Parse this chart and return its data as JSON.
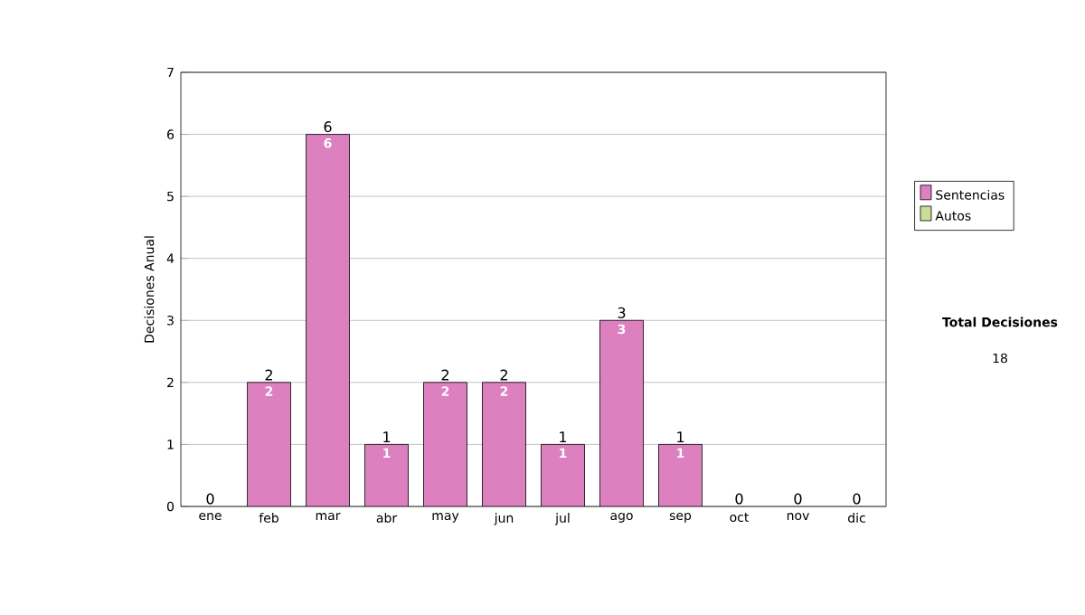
{
  "chart_data": {
    "type": "bar",
    "stacked": true,
    "ylabel": "Decisiones Anual",
    "categories": [
      "ene",
      "feb",
      "mar",
      "abr",
      "may",
      "jun",
      "jul",
      "ago",
      "sep",
      "oct",
      "nov",
      "dic"
    ],
    "series": [
      {
        "name": "Sentencias",
        "color": "#dd80c0",
        "values": [
          0,
          2,
          6,
          1,
          2,
          2,
          1,
          3,
          1,
          0,
          0,
          0
        ],
        "value_labels": [
          null,
          "2",
          "6",
          "1",
          "2",
          "2",
          "1",
          "3",
          "1",
          null,
          null,
          null
        ]
      },
      {
        "name": "Autos",
        "color": "#ccdd99",
        "values": [
          0,
          0,
          0,
          0,
          0,
          0,
          0,
          0,
          0,
          0,
          0,
          0
        ]
      }
    ],
    "totals": [
      "0",
      "2",
      "6",
      "1",
      "2",
      "2",
      "1",
      "3",
      "1",
      "0",
      "0",
      "0"
    ],
    "ylim": [
      0,
      7
    ],
    "yticks": [
      0,
      1,
      2,
      3,
      4,
      5,
      6,
      7
    ],
    "grid": "y",
    "legend": "right",
    "annotations": [
      "**Total Decisiones**",
      "18"
    ]
  }
}
